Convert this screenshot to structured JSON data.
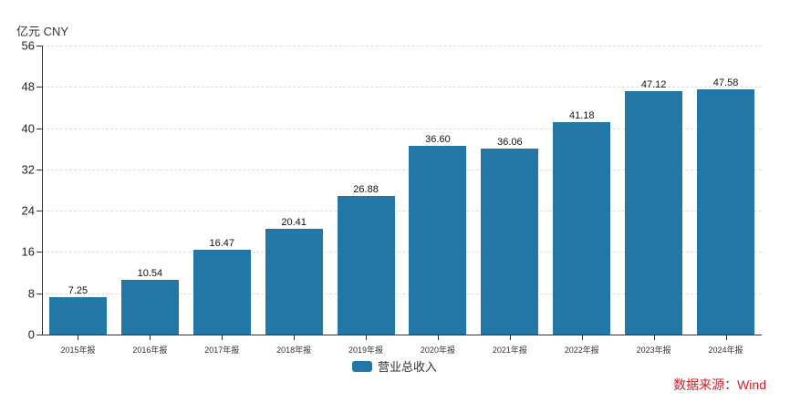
{
  "chart_data": {
    "type": "bar",
    "title": "",
    "xlabel": "",
    "ylabel": "亿元  CNY",
    "ylim": [
      0,
      56
    ],
    "yticks": [
      0,
      8,
      16,
      24,
      32,
      40,
      48,
      56
    ],
    "grid": true,
    "legend_position": "bottom",
    "categories": [
      "2015年报",
      "2016年报",
      "2017年报",
      "2018年报",
      "2019年报",
      "2020年报",
      "2021年报",
      "2022年报",
      "2023年报",
      "2024年报"
    ],
    "series": [
      {
        "name": "营业总收入",
        "color": "#2277a7",
        "values": [
          7.25,
          10.54,
          16.47,
          20.41,
          26.88,
          36.6,
          36.06,
          41.18,
          47.12,
          47.58
        ],
        "labels": [
          "7.25",
          "10.54",
          "16.47",
          "20.41",
          "26.88",
          "36.60",
          "36.06",
          "41.18",
          "47.12",
          "47.58"
        ]
      }
    ]
  },
  "unit_label": "亿元  CNY",
  "legend": {
    "label": "营业总收入"
  },
  "source": "数据来源：Wind",
  "colors": {
    "bar": "#2277a7",
    "source": "#d0202a"
  }
}
